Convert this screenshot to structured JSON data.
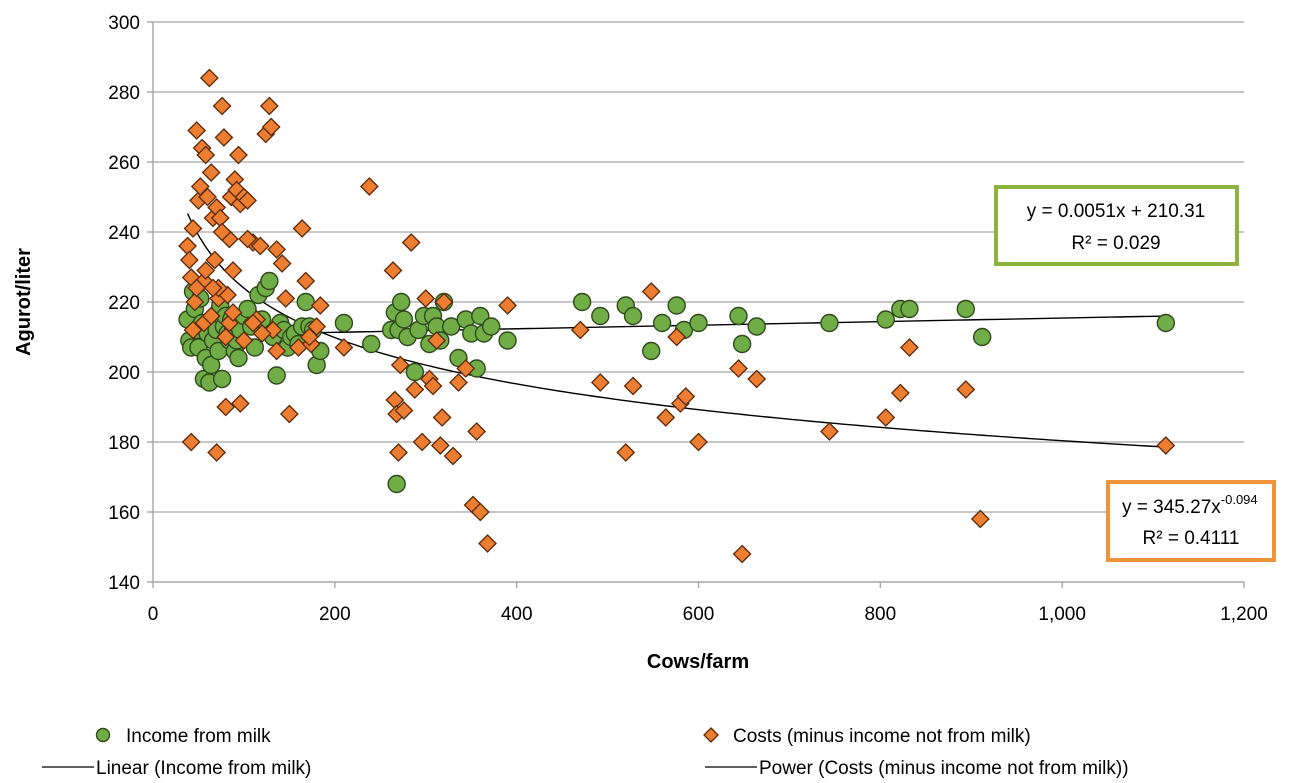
{
  "chart_data": {
    "type": "scatter",
    "xlabel": "Cows/farm",
    "ylabel": "Agurot/liter",
    "xlim": [
      0,
      1200
    ],
    "ylim": [
      140,
      300
    ],
    "x_ticks": [
      0,
      200,
      400,
      600,
      800,
      1000,
      1200
    ],
    "x_tick_labels": [
      "0",
      "200",
      "400",
      "600",
      "800",
      "1,000",
      "1,200"
    ],
    "y_ticks": [
      140,
      160,
      180,
      200,
      220,
      240,
      260,
      280,
      300
    ],
    "y_tick_labels": [
      "140",
      "160",
      "180",
      "200",
      "220",
      "240",
      "260",
      "280",
      "300"
    ],
    "grid": "horizontal",
    "legend_position": "bottom",
    "series": [
      {
        "name": "Income from milk",
        "marker": "circle",
        "color": "#70ad47",
        "edge_color": "#2f4b1c",
        "points": [
          [
            38,
            215
          ],
          [
            40,
            209
          ],
          [
            42,
            207
          ],
          [
            44,
            223
          ],
          [
            46,
            218
          ],
          [
            48,
            212
          ],
          [
            50,
            207
          ],
          [
            52,
            221
          ],
          [
            54,
            214
          ],
          [
            56,
            198
          ],
          [
            58,
            204
          ],
          [
            60,
            211
          ],
          [
            62,
            197
          ],
          [
            64,
            202
          ],
          [
            66,
            209
          ],
          [
            68,
            215
          ],
          [
            70,
            212
          ],
          [
            72,
            206
          ],
          [
            74,
            219
          ],
          [
            76,
            198
          ],
          [
            78,
            213
          ],
          [
            80,
            216
          ],
          [
            82,
            211
          ],
          [
            84,
            209
          ],
          [
            86,
            215
          ],
          [
            88,
            212
          ],
          [
            90,
            206
          ],
          [
            92,
            209
          ],
          [
            94,
            204
          ],
          [
            96,
            212
          ],
          [
            100,
            216
          ],
          [
            104,
            218
          ],
          [
            108,
            213
          ],
          [
            112,
            207
          ],
          [
            116,
            222
          ],
          [
            120,
            215
          ],
          [
            124,
            224
          ],
          [
            128,
            226
          ],
          [
            132,
            210
          ],
          [
            136,
            199
          ],
          [
            140,
            214
          ],
          [
            144,
            212
          ],
          [
            148,
            207
          ],
          [
            152,
            210
          ],
          [
            156,
            211
          ],
          [
            160,
            208
          ],
          [
            164,
            213
          ],
          [
            168,
            220
          ],
          [
            172,
            213
          ],
          [
            176,
            212
          ],
          [
            180,
            202
          ],
          [
            184,
            206
          ],
          [
            210,
            214
          ],
          [
            240,
            208
          ],
          [
            262,
            212
          ],
          [
            266,
            217
          ],
          [
            270,
            212
          ],
          [
            273,
            220
          ],
          [
            276,
            215
          ],
          [
            280,
            210
          ],
          [
            268,
            168
          ],
          [
            288,
            200
          ],
          [
            292,
            212
          ],
          [
            298,
            216
          ],
          [
            304,
            208
          ],
          [
            308,
            216
          ],
          [
            312,
            213
          ],
          [
            316,
            209
          ],
          [
            320,
            220
          ],
          [
            328,
            213
          ],
          [
            336,
            204
          ],
          [
            344,
            215
          ],
          [
            350,
            211
          ],
          [
            356,
            201
          ],
          [
            360,
            216
          ],
          [
            364,
            211
          ],
          [
            372,
            213
          ],
          [
            390,
            209
          ],
          [
            472,
            220
          ],
          [
            492,
            216
          ],
          [
            520,
            219
          ],
          [
            528,
            216
          ],
          [
            548,
            206
          ],
          [
            560,
            214
          ],
          [
            576,
            219
          ],
          [
            584,
            212
          ],
          [
            600,
            214
          ],
          [
            644,
            216
          ],
          [
            648,
            208
          ],
          [
            664,
            213
          ],
          [
            744,
            214
          ],
          [
            806,
            215
          ],
          [
            822,
            218
          ],
          [
            832,
            218
          ],
          [
            894,
            218
          ],
          [
            912,
            210
          ],
          [
            1114,
            214
          ]
        ]
      },
      {
        "name": "Costs (minus income not from milk)",
        "marker": "diamond",
        "color": "#ed7d31",
        "edge_color": "#5a2a08",
        "points": [
          [
            38,
            236
          ],
          [
            40,
            232
          ],
          [
            42,
            227
          ],
          [
            44,
            241
          ],
          [
            46,
            220
          ],
          [
            48,
            269
          ],
          [
            50,
            249
          ],
          [
            52,
            253
          ],
          [
            54,
            264
          ],
          [
            56,
            226
          ],
          [
            58,
            262
          ],
          [
            60,
            250
          ],
          [
            62,
            284
          ],
          [
            64,
            257
          ],
          [
            66,
            244
          ],
          [
            68,
            232
          ],
          [
            70,
            247
          ],
          [
            72,
            221
          ],
          [
            74,
            244
          ],
          [
            76,
            276
          ],
          [
            78,
            267
          ],
          [
            80,
            210
          ],
          [
            82,
            222
          ],
          [
            84,
            238
          ],
          [
            86,
            250
          ],
          [
            88,
            229
          ],
          [
            90,
            255
          ],
          [
            92,
            252
          ],
          [
            94,
            262
          ],
          [
            96,
            248
          ],
          [
            100,
            250
          ],
          [
            104,
            249
          ],
          [
            110,
            237
          ],
          [
            114,
            215
          ],
          [
            118,
            236
          ],
          [
            124,
            268
          ],
          [
            128,
            276
          ],
          [
            130,
            270
          ],
          [
            136,
            235
          ],
          [
            142,
            231
          ],
          [
            146,
            221
          ],
          [
            150,
            188
          ],
          [
            160,
            207
          ],
          [
            164,
            241
          ],
          [
            168,
            226
          ],
          [
            174,
            208
          ],
          [
            180,
            213
          ],
          [
            184,
            219
          ],
          [
            42,
            180
          ],
          [
            70,
            177
          ],
          [
            80,
            190
          ],
          [
            96,
            191
          ],
          [
            210,
            207
          ],
          [
            238,
            253
          ],
          [
            264,
            229
          ],
          [
            266,
            192
          ],
          [
            268,
            188
          ],
          [
            270,
            177
          ],
          [
            272,
            202
          ],
          [
            276,
            189
          ],
          [
            284,
            237
          ],
          [
            288,
            195
          ],
          [
            296,
            180
          ],
          [
            300,
            221
          ],
          [
            304,
            198
          ],
          [
            308,
            196
          ],
          [
            312,
            209
          ],
          [
            316,
            179
          ],
          [
            318,
            187
          ],
          [
            320,
            220
          ],
          [
            330,
            176
          ],
          [
            336,
            197
          ],
          [
            344,
            201
          ],
          [
            352,
            162
          ],
          [
            356,
            183
          ],
          [
            360,
            160
          ],
          [
            368,
            151
          ],
          [
            390,
            219
          ],
          [
            470,
            212
          ],
          [
            492,
            197
          ],
          [
            520,
            177
          ],
          [
            528,
            196
          ],
          [
            548,
            223
          ],
          [
            564,
            187
          ],
          [
            576,
            210
          ],
          [
            580,
            191
          ],
          [
            586,
            193
          ],
          [
            600,
            180
          ],
          [
            644,
            201
          ],
          [
            648,
            148
          ],
          [
            664,
            198
          ],
          [
            744,
            183
          ],
          [
            806,
            187
          ],
          [
            822,
            194
          ],
          [
            832,
            207
          ],
          [
            894,
            195
          ],
          [
            910,
            158
          ],
          [
            1114,
            179
          ],
          [
            44,
            212
          ],
          [
            56,
            214
          ],
          [
            64,
            216
          ],
          [
            72,
            224
          ],
          [
            84,
            214
          ],
          [
            110,
            214
          ],
          [
            132,
            212
          ],
          [
            136,
            206
          ],
          [
            172,
            210
          ],
          [
            48,
            224
          ],
          [
            58,
            229
          ],
          [
            66,
            224
          ],
          [
            88,
            217
          ],
          [
            100,
            209
          ],
          [
            120,
            211
          ],
          [
            76,
            240
          ],
          [
            104,
            238
          ]
        ]
      }
    ],
    "trendlines": [
      {
        "name": "Linear (Income from milk)",
        "type": "linear",
        "slope": 0.0051,
        "intercept": 210.31,
        "x_range": [
          38,
          1114
        ],
        "equation": "y = 0.0051x + 210.31",
        "r_squared_label": "R² = 0.029",
        "box_color": "#70ad47"
      },
      {
        "name": "Power (Costs (minus income not from milk))",
        "type": "power",
        "coefficient": 345.27,
        "exponent": -0.094,
        "x_range": [
          38,
          1114
        ],
        "equation_prefix": "y = 345.27x",
        "equation_exponent": "-0.094",
        "r_squared_label": "R² = 0.4111",
        "box_color": "#ed7d31"
      }
    ],
    "legend": [
      {
        "label": "Income from milk",
        "symbol": "circle"
      },
      {
        "label": "Costs (minus income not from milk)",
        "symbol": "diamond"
      },
      {
        "label": "Linear (Income from milk)",
        "symbol": "line"
      },
      {
        "label": "Power (Costs (minus income not from milk))",
        "symbol": "line"
      }
    ]
  }
}
